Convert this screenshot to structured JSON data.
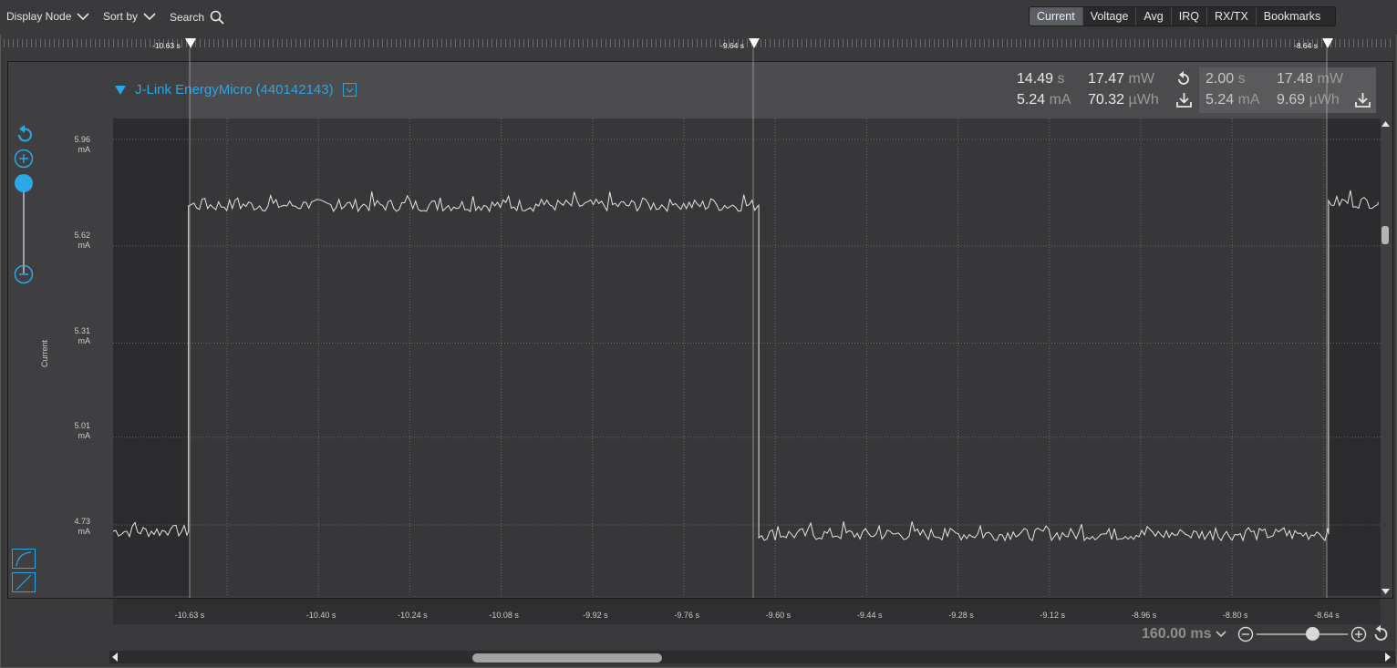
{
  "toolbar": {
    "display_node": "Display Node",
    "sort_by": "Sort by",
    "search": "Search",
    "tabs": [
      "Current",
      "Voltage",
      "Avg",
      "IRQ",
      "RX/TX",
      "Bookmarks"
    ],
    "active_tab": "Current"
  },
  "markers": [
    "-10.63 s",
    "-9.64 s",
    "-8.64 s"
  ],
  "device": {
    "title": "J-Link EnergyMicro (440142143)"
  },
  "measurements": {
    "total": {
      "time": "14.49",
      "time_unit": "s",
      "power": "17.47",
      "power_unit": "mW",
      "current": "5.24",
      "current_unit": "mA",
      "energy": "70.32",
      "energy_unit": "µWh"
    },
    "selection": {
      "time": "2.00",
      "time_unit": "s",
      "power": "17.48",
      "power_unit": "mW",
      "current": "5.24",
      "current_unit": "mA",
      "energy": "9.69",
      "energy_unit": "µWh"
    }
  },
  "colors": {
    "accent": "#2aa8e6",
    "active_tab": "#5c5e63",
    "trace": "#e6e6e6"
  },
  "chart_data": {
    "type": "line",
    "title": "",
    "ylabel": "Current",
    "y_unit": "mA",
    "y_ticks": [
      {
        "value": "5.96",
        "unit": "mA"
      },
      {
        "value": "5.62",
        "unit": "mA"
      },
      {
        "value": "5.31",
        "unit": "mA"
      },
      {
        "value": "5.01",
        "unit": "mA"
      },
      {
        "value": "4.73",
        "unit": "mA"
      }
    ],
    "ylim": [
      4.65,
      6.0
    ],
    "x_ticks": [
      "-10.63 s",
      "-10.40 s",
      "-10.24 s",
      "-10.08 s",
      "-9.92 s",
      "-9.76 s",
      "-9.60 s",
      "-9.44 s",
      "-9.28 s",
      "-9.12 s",
      "-8.96 s",
      "-8.80 s",
      "-8.64 s"
    ],
    "x_tick_values": [
      -10.63,
      -10.4,
      -10.24,
      -10.08,
      -9.92,
      -9.76,
      -9.6,
      -9.44,
      -9.28,
      -9.12,
      -8.96,
      -8.8,
      -8.64
    ],
    "series": [
      {
        "name": "Current",
        "segments": [
          {
            "x_start": -11.0,
            "x_end": -10.632,
            "level": 4.71
          },
          {
            "x_start": -10.632,
            "x_end": -9.634,
            "level": 5.75
          },
          {
            "x_start": -9.634,
            "x_end": -8.637,
            "level": 4.7
          },
          {
            "x_start": -8.637,
            "x_end": -8.55,
            "level": 5.76
          }
        ],
        "noise": 0.02
      }
    ],
    "grid": true
  },
  "zoom": {
    "label": "160.00 ms"
  }
}
